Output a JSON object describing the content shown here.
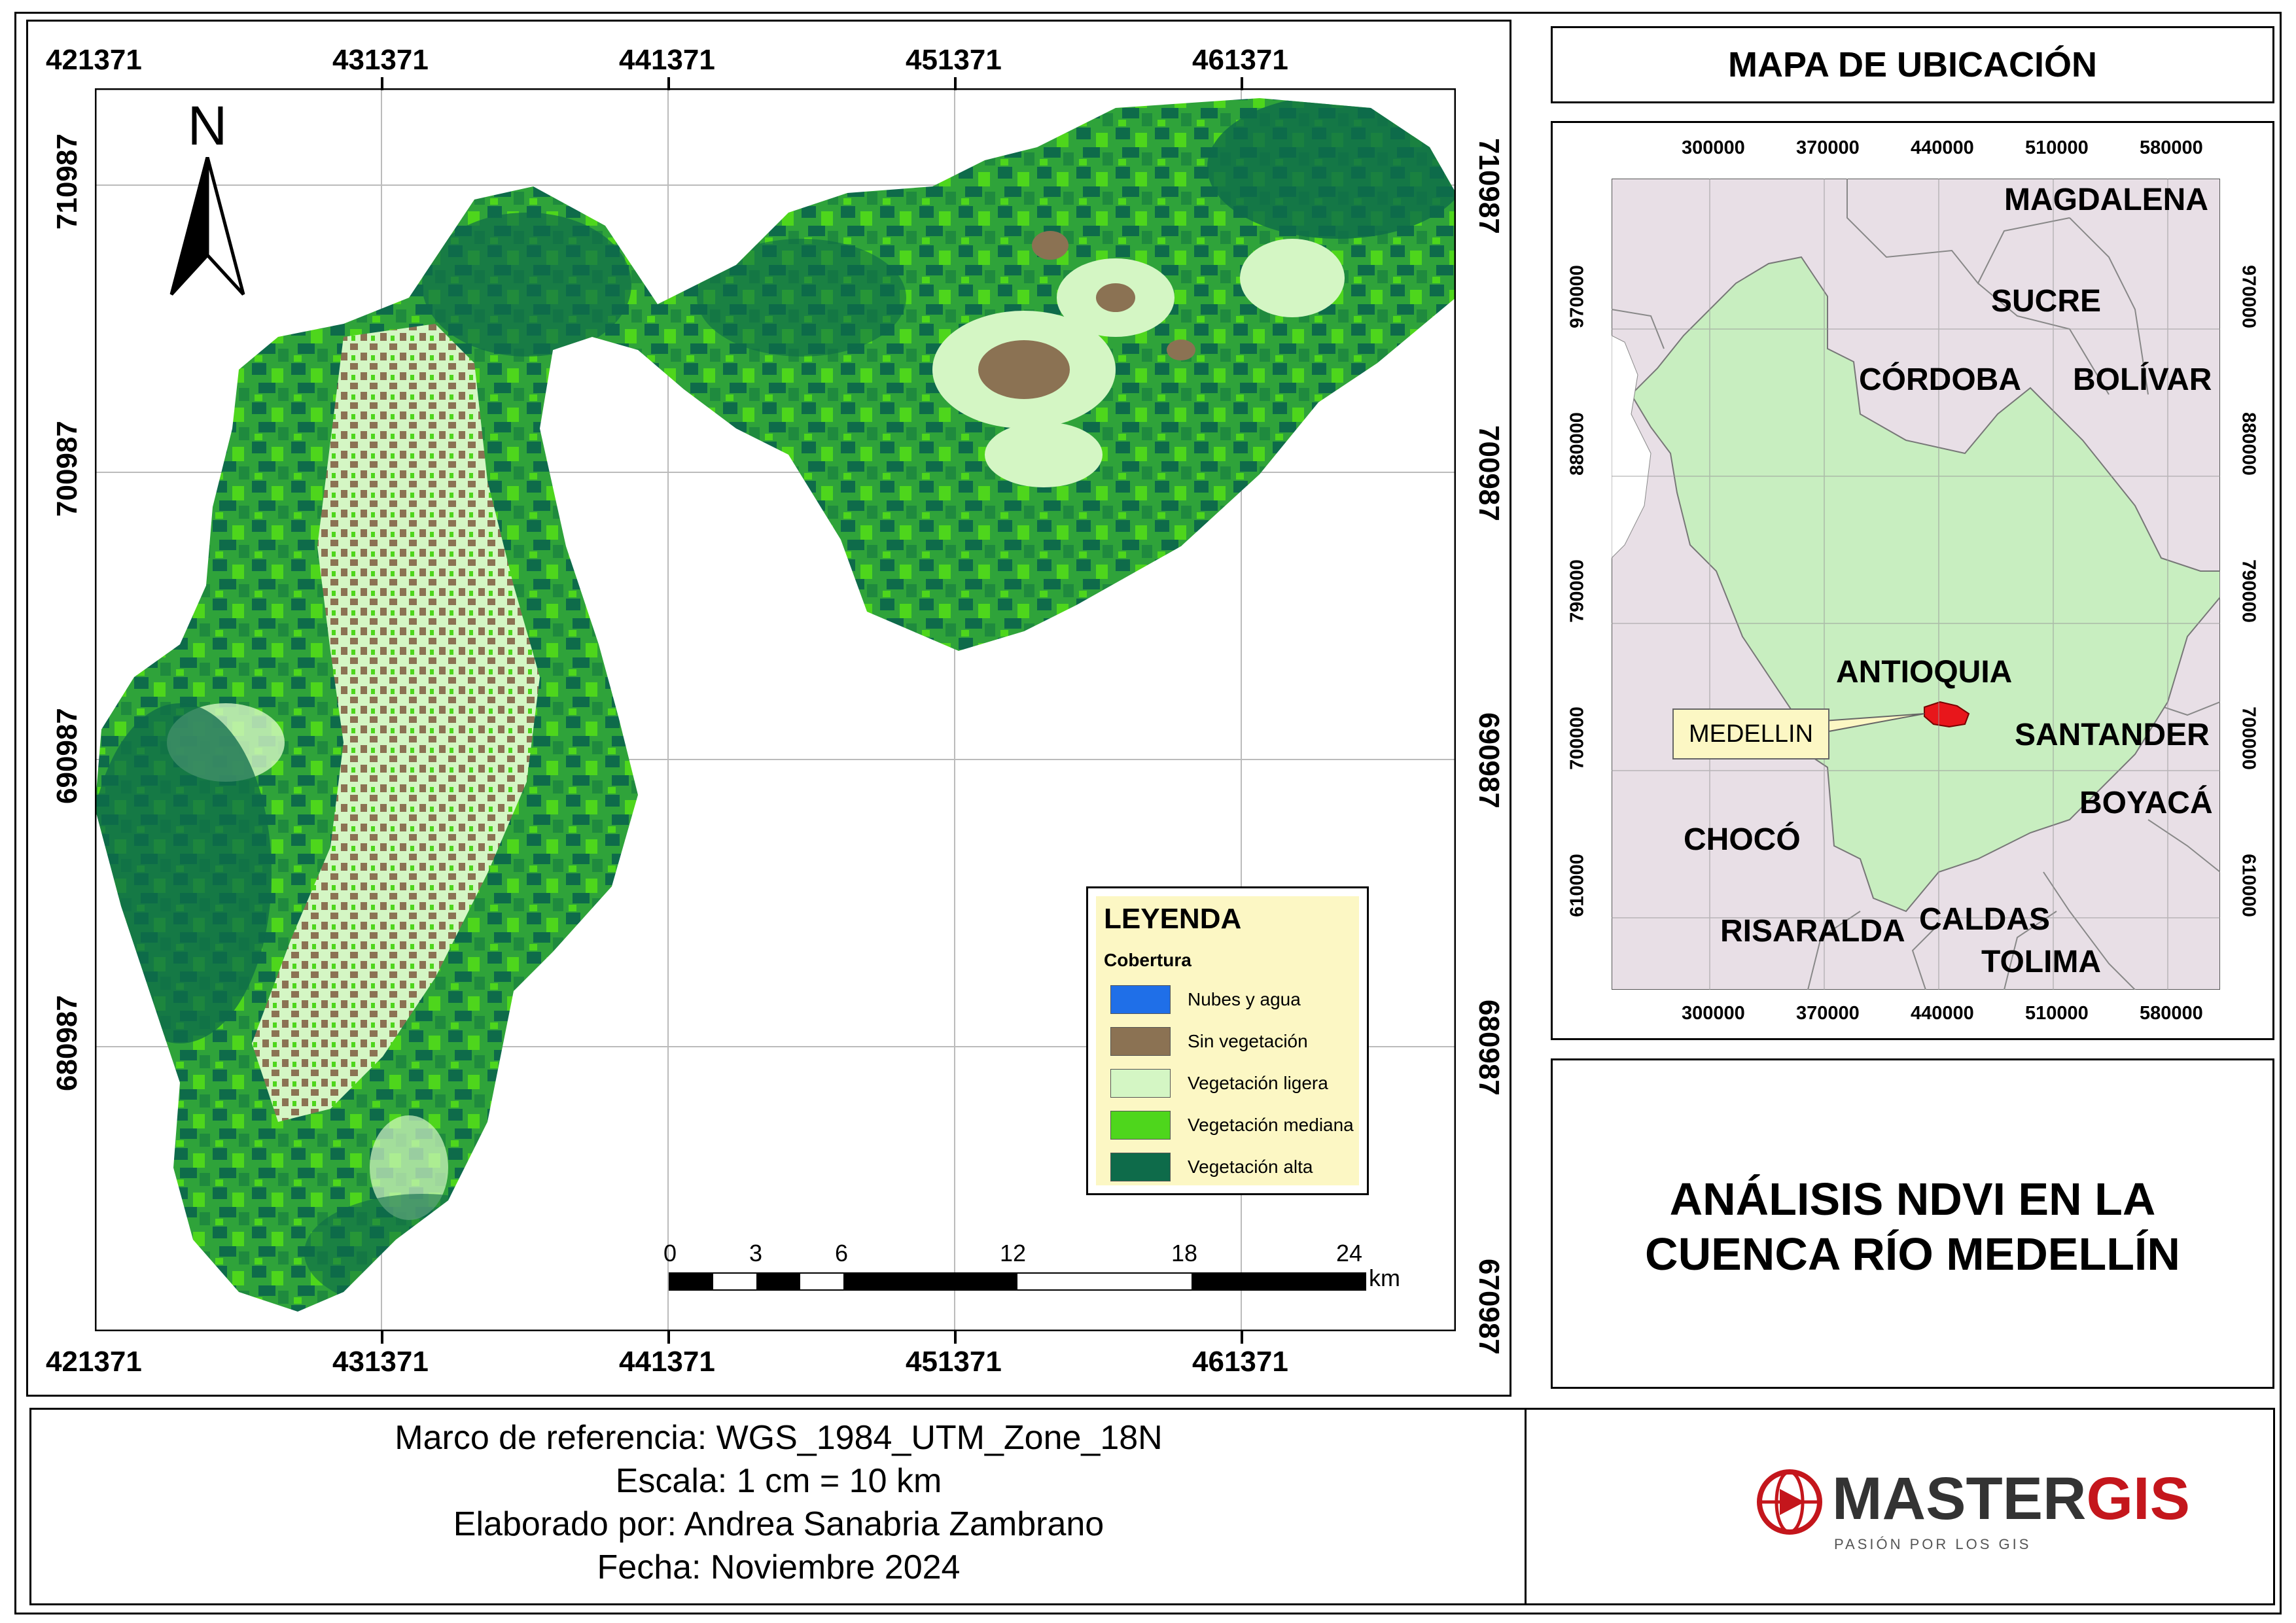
{
  "main_map": {
    "top_x_labels": [
      "421371",
      "431371",
      "441371",
      "451371",
      "461371"
    ],
    "bottom_x_labels": [
      "421371",
      "431371",
      "441371",
      "451371",
      "461371"
    ],
    "left_y_labels": [
      "710987",
      "700987",
      "690987",
      "680987"
    ],
    "right_y_labels": [
      "710987",
      "700987",
      "690987",
      "680987",
      "670987"
    ],
    "north_label": "N",
    "scale_bar": {
      "ticks": [
        "0",
        "3",
        "6",
        "12",
        "18",
        "24"
      ],
      "unit": "km"
    },
    "legend": {
      "title": "LEYENDA",
      "subtitle": "Cobertura",
      "items": [
        {
          "label": "Nubes y agua",
          "color": "#1f6fe8"
        },
        {
          "label": "Sin vegetación",
          "color": "#8b7253"
        },
        {
          "label": "Vegetación ligera",
          "color": "#d4f6c4"
        },
        {
          "label": "Vegetación mediana",
          "color": "#4ed61c"
        },
        {
          "label": "Vegetación alta",
          "color": "#0e6b4a"
        }
      ]
    }
  },
  "location_map": {
    "title": "MAPA DE UBICACIÓN",
    "top_x_labels": [
      "300000",
      "370000",
      "440000",
      "510000",
      "580000"
    ],
    "bottom_x_labels": [
      "300000",
      "370000",
      "440000",
      "510000",
      "580000"
    ],
    "left_y_labels": [
      "970000",
      "880000",
      "790000",
      "700000",
      "610000"
    ],
    "right_y_labels": [
      "970000",
      "880000",
      "790000",
      "700000",
      "610000"
    ],
    "departments": [
      "MAGDALENA",
      "SUCRE",
      "CÓRDOBA",
      "BOLÍVAR",
      "ANTIOQUIA",
      "SANTANDER",
      "BOYACÁ",
      "CHOCÓ",
      "RISARALDA",
      "CALDAS",
      "TOLIMA"
    ],
    "callout": "MEDELLIN",
    "colors": {
      "antioquia": "#c8eec0",
      "others": "#e8dfe6",
      "medellin": "#e8161b"
    }
  },
  "map_title": {
    "line1": "ANÁLISIS NDVI EN LA",
    "line2": "CUENCA RÍO MEDELLÍN"
  },
  "info": {
    "line1": "Marco de referencia: WGS_1984_UTM_Zone_18N",
    "line2": "Escala: 1 cm = 10 km",
    "line3": "Elaborado por: Andrea Sanabria Zambrano",
    "line4": "Fecha: Noviembre 2024"
  },
  "logo": {
    "brand_part1": "MASTER",
    "brand_part2": "GIS",
    "tagline": "PASIÓN POR LOS GIS",
    "accent": "#c4161c"
  }
}
